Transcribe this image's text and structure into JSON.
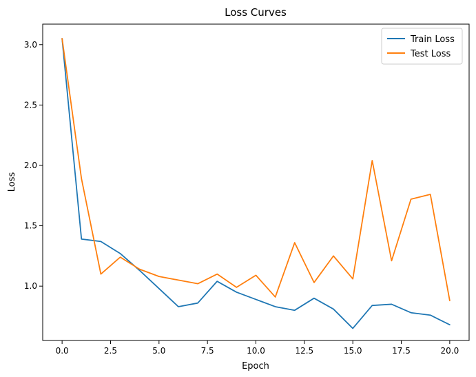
{
  "chart_data": {
    "type": "line",
    "title": "Loss Curves",
    "xlabel": "Epoch",
    "ylabel": "Loss",
    "xlim": [
      -1.0,
      21.0
    ],
    "ylim": [
      0.55,
      3.17
    ],
    "xticks": [
      0.0,
      2.5,
      5.0,
      7.5,
      10.0,
      12.5,
      15.0,
      17.5,
      20.0
    ],
    "xtick_labels": [
      "0.0",
      "2.5",
      "5.0",
      "7.5",
      "10.0",
      "12.5",
      "15.0",
      "17.5",
      "20.0"
    ],
    "yticks": [
      1.0,
      1.5,
      2.0,
      2.5,
      3.0
    ],
    "ytick_labels": [
      "1.0",
      "1.5",
      "2.0",
      "2.5",
      "3.0"
    ],
    "grid": false,
    "legend_position": "top-right",
    "x": [
      0,
      1,
      2,
      3,
      4,
      5,
      6,
      7,
      8,
      9,
      10,
      11,
      12,
      13,
      14,
      15,
      16,
      17,
      18,
      19,
      20
    ],
    "series": [
      {
        "name": "Train Loss",
        "color": "#1f77b4",
        "values": [
          3.05,
          1.39,
          1.37,
          1.27,
          1.13,
          0.98,
          0.83,
          0.86,
          1.04,
          0.95,
          0.89,
          0.83,
          0.8,
          0.9,
          0.81,
          0.65,
          0.84,
          0.85,
          0.78,
          0.76,
          0.68
        ]
      },
      {
        "name": "Test Loss",
        "color": "#ff7f0e",
        "values": [
          3.05,
          1.89,
          1.1,
          1.24,
          1.14,
          1.08,
          1.05,
          1.02,
          1.1,
          0.99,
          1.09,
          0.91,
          1.36,
          1.03,
          1.25,
          1.06,
          2.04,
          1.21,
          1.72,
          1.76,
          0.88
        ]
      }
    ]
  }
}
